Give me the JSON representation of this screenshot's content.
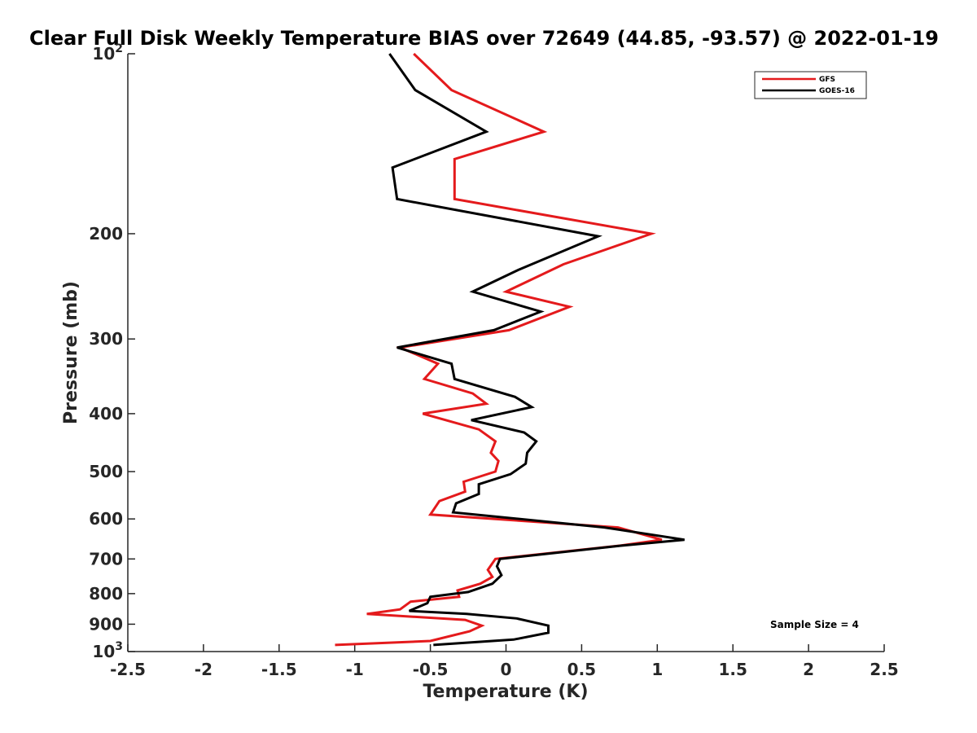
{
  "chart_data": {
    "type": "line",
    "title": "Clear Full Disk Weekly Temperature BIAS over 72649 (44.85, -93.57) @ 2022-01-19",
    "xlabel": "Temperature (K)",
    "ylabel": "Pressure (mb)",
    "xlim": [
      -2.5,
      2.5
    ],
    "ylim": [
      100,
      1000
    ],
    "yscale": "log",
    "y_reversed": true,
    "grid": false,
    "legend_position": "top-right",
    "x_ticks": [
      "-2.5",
      "-2",
      "-1.5",
      "-1",
      "-0.5",
      "0",
      "0.5",
      "1",
      "1.5",
      "2",
      "2.5"
    ],
    "x_tick_values": [
      -2.5,
      -2,
      -1.5,
      -1,
      -0.5,
      0,
      0.5,
      1,
      1.5,
      2,
      2.5
    ],
    "y_ticks": [
      {
        "value": 100,
        "base": "10",
        "exp": "2"
      },
      {
        "value": 200,
        "label": "200"
      },
      {
        "value": 300,
        "label": "300"
      },
      {
        "value": 400,
        "label": "400"
      },
      {
        "value": 500,
        "label": "500"
      },
      {
        "value": 600,
        "label": "600"
      },
      {
        "value": 700,
        "label": "700"
      },
      {
        "value": 800,
        "label": "800"
      },
      {
        "value": 900,
        "label": "900"
      },
      {
        "value": 1000,
        "base": "10",
        "exp": "3"
      }
    ],
    "series": [
      {
        "name": "GFS",
        "color": "#e41a1c",
        "points": [
          [
            -0.61,
            100
          ],
          [
            -0.36,
            115
          ],
          [
            0.25,
            135
          ],
          [
            -0.34,
            150
          ],
          [
            -0.34,
            175
          ],
          [
            0.96,
            200
          ],
          [
            0.38,
            225
          ],
          [
            0.0,
            250
          ],
          [
            0.42,
            265
          ],
          [
            0.02,
            290
          ],
          [
            -0.7,
            310
          ],
          [
            -0.45,
            330
          ],
          [
            -0.54,
            350
          ],
          [
            -0.22,
            370
          ],
          [
            -0.13,
            385
          ],
          [
            -0.55,
            400
          ],
          [
            -0.18,
            425
          ],
          [
            -0.07,
            445
          ],
          [
            -0.1,
            465
          ],
          [
            -0.05,
            480
          ],
          [
            -0.07,
            500
          ],
          [
            -0.28,
            520
          ],
          [
            -0.27,
            540
          ],
          [
            -0.44,
            560
          ],
          [
            -0.5,
            590
          ],
          [
            0.74,
            620
          ],
          [
            1.03,
            650
          ],
          [
            0.75,
            665
          ],
          [
            -0.07,
            700
          ],
          [
            -0.12,
            730
          ],
          [
            -0.09,
            750
          ],
          [
            -0.17,
            770
          ],
          [
            -0.32,
            790
          ],
          [
            -0.31,
            810
          ],
          [
            -0.63,
            825
          ],
          [
            -0.7,
            850
          ],
          [
            -0.92,
            865
          ],
          [
            -0.27,
            885
          ],
          [
            -0.16,
            905
          ],
          [
            -0.24,
            925
          ],
          [
            -0.5,
            960
          ],
          [
            -1.13,
            975
          ]
        ]
      },
      {
        "name": "GOES-16",
        "color": "#000000",
        "points": [
          [
            -0.77,
            100
          ],
          [
            -0.6,
            115
          ],
          [
            -0.13,
            135
          ],
          [
            -0.75,
            155
          ],
          [
            -0.72,
            175
          ],
          [
            0.61,
            202
          ],
          [
            0.08,
            230
          ],
          [
            -0.22,
            250
          ],
          [
            0.23,
            270
          ],
          [
            -0.08,
            290
          ],
          [
            -0.72,
            310
          ],
          [
            -0.36,
            330
          ],
          [
            -0.34,
            350
          ],
          [
            0.06,
            375
          ],
          [
            0.17,
            390
          ],
          [
            -0.23,
            410
          ],
          [
            0.12,
            430
          ],
          [
            0.2,
            445
          ],
          [
            0.14,
            465
          ],
          [
            0.13,
            485
          ],
          [
            0.03,
            505
          ],
          [
            -0.18,
            525
          ],
          [
            -0.18,
            545
          ],
          [
            -0.33,
            565
          ],
          [
            -0.35,
            585
          ],
          [
            0.65,
            620
          ],
          [
            1.18,
            650
          ],
          [
            0.76,
            665
          ],
          [
            -0.04,
            700
          ],
          [
            -0.06,
            720
          ],
          [
            -0.03,
            745
          ],
          [
            -0.09,
            770
          ],
          [
            -0.25,
            795
          ],
          [
            -0.5,
            810
          ],
          [
            -0.52,
            830
          ],
          [
            -0.64,
            855
          ],
          [
            -0.26,
            865
          ],
          [
            0.07,
            880
          ],
          [
            0.28,
            905
          ],
          [
            0.28,
            930
          ],
          [
            0.05,
            955
          ],
          [
            -0.48,
            975
          ]
        ]
      }
    ],
    "annotation": "Sample Size = 4"
  }
}
